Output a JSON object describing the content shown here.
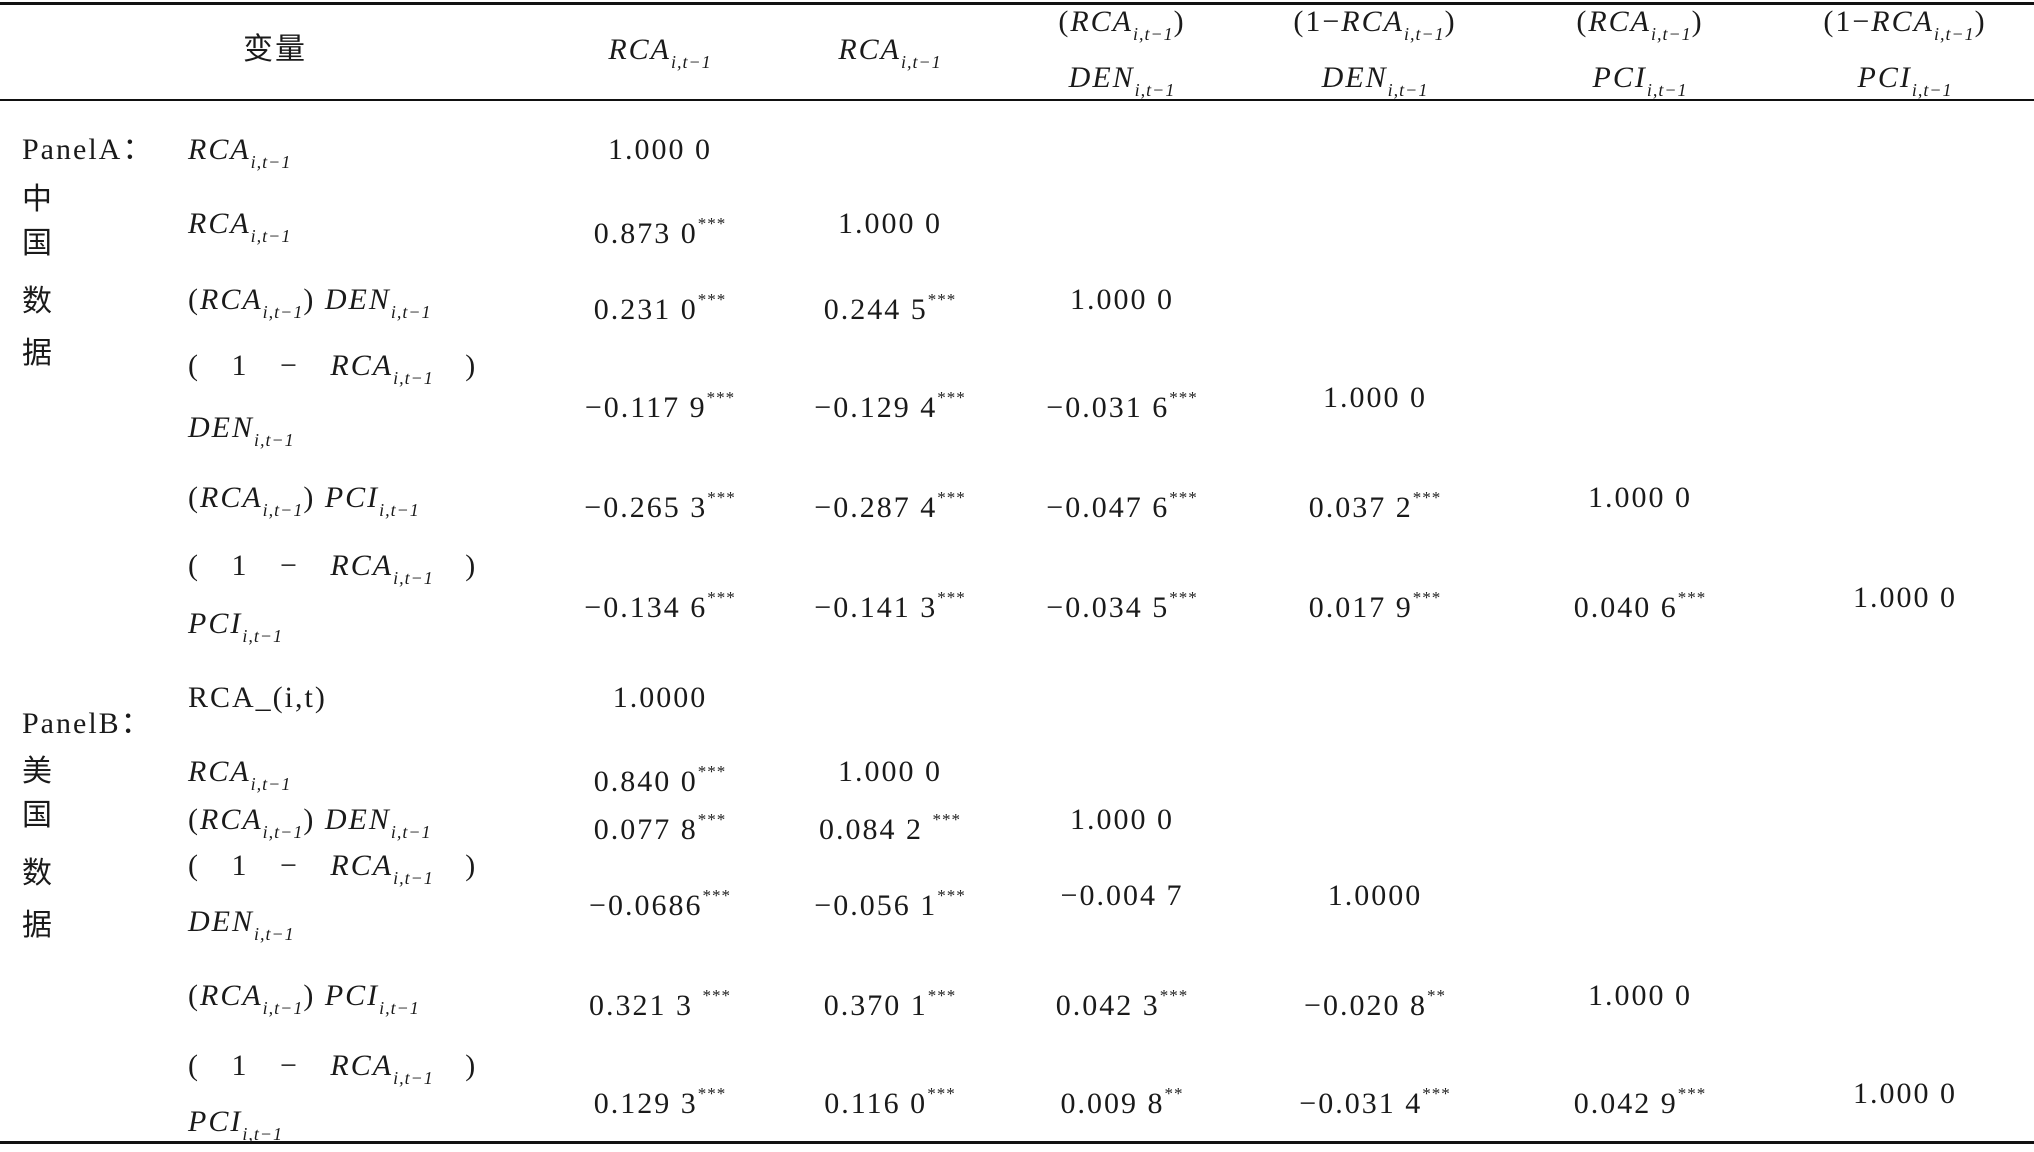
{
  "table": {
    "header": {
      "variable": "变量",
      "columns": [
        [
          "RCA|i,t−1"
        ],
        [
          "RCA|i,t−1"
        ],
        [
          "(RCA|i,t−1)",
          "DEN|i,t−1"
        ],
        [
          "(1−RCA|i,t−1)",
          "DEN|i,t−1"
        ],
        [
          "(RCA|i,t−1)",
          "PCI|i,t−1"
        ],
        [
          "(1−RCA|i,t−1)",
          "PCI|i,t−1"
        ]
      ]
    },
    "panels": [
      {
        "label": [
          "PanelA：",
          "中",
          "国",
          "数",
          "据"
        ],
        "rows": [
          {
            "var": [
              "RCA|i,t−1"
            ],
            "cells": [
              [
                "1.000 0",
                ""
              ],
              null,
              null,
              null,
              null,
              null
            ]
          },
          {
            "var": [
              "RCA|i,t−1"
            ],
            "cells": [
              [
                "0.873 0",
                "***"
              ],
              [
                "1.000 0",
                ""
              ],
              null,
              null,
              null,
              null
            ]
          },
          {
            "var": [
              "(RCA|i,t−1) DEN|i,t−1"
            ],
            "cells": [
              [
                "0.231 0",
                "***"
              ],
              [
                "0.244 5",
                "***"
              ],
              [
                "1.000 0",
                ""
              ],
              null,
              null,
              null
            ]
          },
          {
            "var": [
              "( 1  −  RCA|i,t−1 )",
              "DEN|i,t−1"
            ],
            "cells": [
              [
                "−0.117 9",
                "***"
              ],
              [
                "−0.129 4",
                "***"
              ],
              [
                "−0.031 6",
                "***"
              ],
              [
                "1.000 0",
                ""
              ],
              null,
              null
            ]
          },
          {
            "var": [
              "(RCA|i,t−1) PCI|i,t−1"
            ],
            "cells": [
              [
                "−0.265 3",
                "***"
              ],
              [
                "−0.287 4",
                "***"
              ],
              [
                "−0.047 6",
                "***"
              ],
              [
                "0.037 2",
                "***"
              ],
              [
                "1.000 0",
                ""
              ],
              null
            ]
          },
          {
            "var": [
              "( 1  −  RCA|i,t−1 )",
              "PCI|i,t−1"
            ],
            "cells": [
              [
                "−0.134 6",
                "***"
              ],
              [
                "−0.141 3",
                "***"
              ],
              [
                "−0.034 5",
                "***"
              ],
              [
                "0.017 9",
                "***"
              ],
              [
                "0.040 6",
                "***"
              ],
              [
                "1.000 0",
                ""
              ]
            ]
          }
        ]
      },
      {
        "label": [
          "PanelB：",
          "美",
          "国",
          "数",
          "据"
        ],
        "rows": [
          {
            "var": [
              "RCA_(i,t)"
            ],
            "cells": [
              [
                "1.0000",
                ""
              ],
              null,
              null,
              null,
              null,
              null
            ]
          },
          {
            "var": [
              "RCA|i,t−1"
            ],
            "cells": [
              [
                "0.840 0",
                "***"
              ],
              [
                "1.000 0",
                ""
              ],
              null,
              null,
              null,
              null
            ]
          },
          {
            "var": [
              "(RCA|i,t−1) DEN|i,t−1"
            ],
            "cells": [
              [
                "0.077 8",
                "***"
              ],
              [
                "0.084 2 ",
                "***"
              ],
              [
                "1.000 0",
                ""
              ],
              null,
              null,
              null
            ]
          },
          {
            "var": [
              "( 1  −  RCA|i,t−1 )",
              "DEN|i,t−1"
            ],
            "cells": [
              [
                "−0.0686",
                "***"
              ],
              [
                "−0.056 1",
                "***"
              ],
              [
                "−0.004 7",
                ""
              ],
              [
                "1.0000",
                ""
              ],
              null,
              null
            ]
          },
          {
            "var": [
              "(RCA|i,t−1) PCI|i,t−1"
            ],
            "cells": [
              [
                "0.321 3 ",
                "***"
              ],
              [
                "0.370 1",
                "***"
              ],
              [
                "0.042 3",
                "***"
              ],
              [
                "−0.020 8",
                "**"
              ],
              [
                "1.000 0",
                ""
              ],
              null
            ]
          },
          {
            "var": [
              "( 1  −  RCA|i,t−1 )",
              "PCI|i,t−1"
            ],
            "cells": [
              [
                "0.129 3",
                "***"
              ],
              [
                "0.116 0",
                "***"
              ],
              [
                "0.009 8",
                "**"
              ],
              [
                "−0.031 4",
                "***"
              ],
              [
                "0.042 9",
                "***"
              ],
              [
                "1.000 0",
                ""
              ]
            ]
          }
        ]
      }
    ]
  }
}
